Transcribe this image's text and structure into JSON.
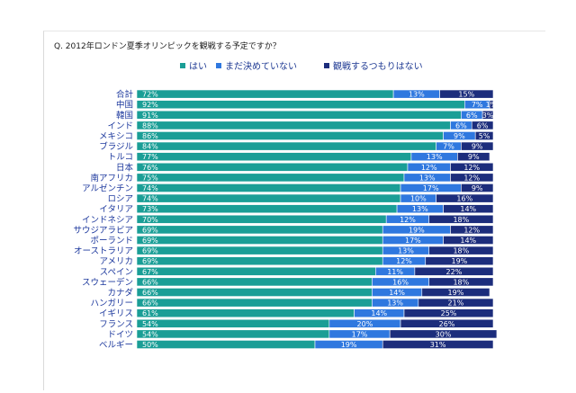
{
  "question": "Q. 2012年ロンドン夏季オリンピックを観戦する予定ですか？",
  "colors": {
    "yes": "#1a9e96",
    "undecided": "#2f78df",
    "no": "#1c2d7c",
    "label": "#1e3a9e",
    "value_text": "#ffffff"
  },
  "legend": [
    {
      "label": "はい",
      "color_key": "yes"
    },
    {
      "label": "まだ決めていない",
      "color_key": "undecided"
    },
    {
      "label": "観戦するつもりはない",
      "color_key": "no"
    }
  ],
  "chart_data": {
    "type": "bar",
    "orientation": "horizontal",
    "stacked": true,
    "normalized_to": 100,
    "title": "",
    "xlabel": "",
    "ylabel": "",
    "categories": [
      "合計",
      "中国",
      "韓国",
      "インド",
      "メキシコ",
      "ブラジル",
      "トルコ",
      "日本",
      "南アフリカ",
      "アルゼンチン",
      "ロシア",
      "イタリア",
      "インドネシア",
      "サウジアラビア",
      "ポーランド",
      "オーストラリア",
      "アメリカ",
      "スペイン",
      "スウェーデン",
      "カナダ",
      "ハンガリー",
      "イギリス",
      "フランス",
      "ドイツ",
      "ベルギー"
    ],
    "series": [
      {
        "name": "はい",
        "values": [
          72,
          92,
          91,
          88,
          86,
          84,
          77,
          76,
          75,
          74,
          74,
          73,
          70,
          69,
          69,
          69,
          69,
          67,
          66,
          66,
          66,
          61,
          54,
          54,
          50
        ]
      },
      {
        "name": "まだ決めていない",
        "values": [
          13,
          7,
          6,
          6,
          9,
          7,
          13,
          12,
          13,
          17,
          10,
          13,
          12,
          19,
          17,
          13,
          12,
          11,
          16,
          14,
          13,
          14,
          20,
          17,
          19
        ]
      },
      {
        "name": "観戦するつもりはない",
        "values": [
          15,
          1,
          3,
          6,
          5,
          9,
          9,
          12,
          12,
          9,
          16,
          14,
          18,
          12,
          14,
          18,
          19,
          22,
          18,
          19,
          21,
          25,
          26,
          30,
          31
        ]
      }
    ],
    "value_labels": [
      [
        "72%",
        "13%",
        "15%"
      ],
      [
        "92%",
        "7%",
        "1%"
      ],
      [
        "91%",
        "6%",
        "3%"
      ],
      [
        "88%",
        "6%",
        "6%"
      ],
      [
        "86%",
        "9%",
        "5%"
      ],
      [
        "84%",
        "7%",
        "9%"
      ],
      [
        "77%",
        "13%",
        "9%"
      ],
      [
        "76%",
        "12%",
        "12%"
      ],
      [
        "75%",
        "13%",
        "12%"
      ],
      [
        "74%",
        "17%",
        "9%"
      ],
      [
        "74%",
        "10%",
        "16%"
      ],
      [
        "73%",
        "13%",
        "14%"
      ],
      [
        "70%",
        "12%",
        "18%"
      ],
      [
        "69%",
        "19%",
        "12%"
      ],
      [
        "69%",
        "17%",
        "14%"
      ],
      [
        "69%",
        "13%",
        "18%"
      ],
      [
        "69%",
        "12%",
        "19%"
      ],
      [
        "67%",
        "11%",
        "22%"
      ],
      [
        "66%",
        "16%",
        "18%"
      ],
      [
        "66%",
        "14%",
        "19%"
      ],
      [
        "66%",
        "13%",
        "21%"
      ],
      [
        "61%",
        "14%",
        "25%"
      ],
      [
        "54%",
        "20%",
        "26%"
      ],
      [
        "54%",
        "17%",
        "30%"
      ],
      [
        "50%",
        "19%",
        "31%"
      ]
    ],
    "legend_position": "top",
    "grid": false
  }
}
